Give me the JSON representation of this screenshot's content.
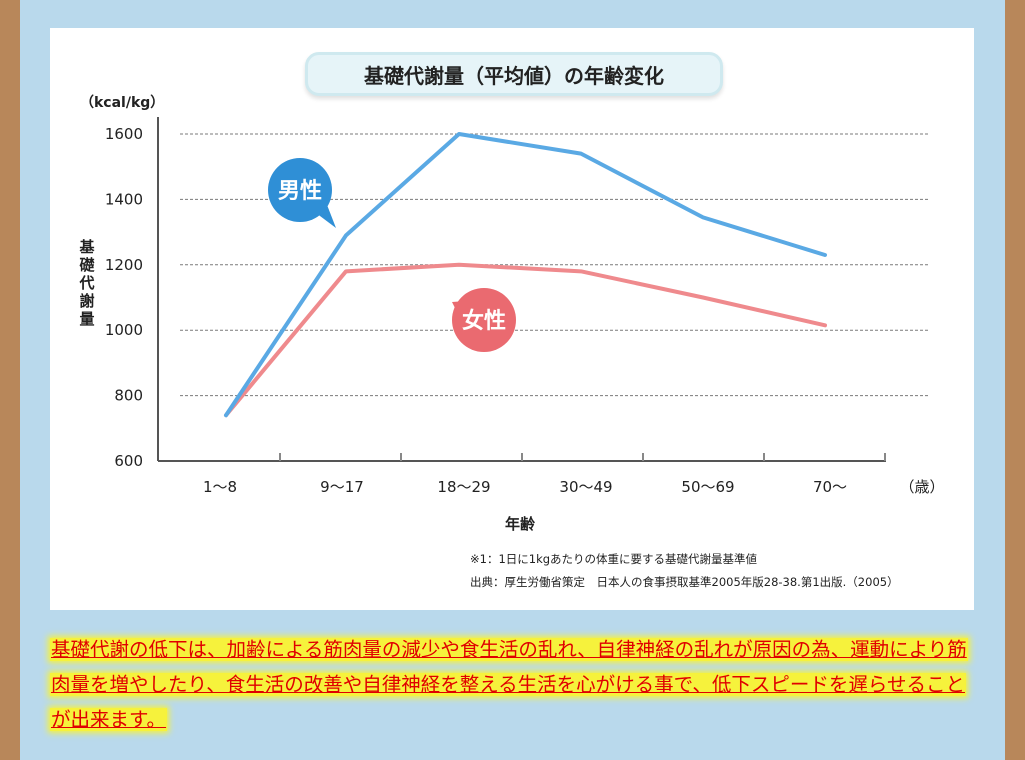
{
  "chart_data": {
    "type": "line",
    "title": "基礎代謝量（平均値）の年齢変化",
    "unit_label": "（kcal/kg）",
    "ylabel": "基礎代謝量",
    "xlabel": "年齢",
    "x_unit": "（歳）",
    "categories": [
      "1〜8",
      "9〜17",
      "18〜29",
      "30〜49",
      "50〜69",
      "70〜"
    ],
    "ylim": [
      600,
      1650
    ],
    "yticks": [
      600,
      800,
      1000,
      1200,
      1400,
      1600
    ],
    "grid": true,
    "series": [
      {
        "name": "男性",
        "color": "#5aa9e4",
        "values": [
          740,
          1290,
          1600,
          1540,
          1345,
          1230
        ]
      },
      {
        "name": "女性",
        "color": "#ef8a8d",
        "values": [
          740,
          1180,
          1200,
          1180,
          1100,
          1015
        ]
      }
    ],
    "labels": [
      {
        "text": "男性",
        "color": "#2f8fd6"
      },
      {
        "text": "女性",
        "color": "#ea6a70"
      }
    ]
  },
  "footnote1": "※1：1日に1kgあたりの体重に要する基礎代謝量基準値",
  "footnote2": "出典：厚生労働省策定　日本人の食事摂取基準2005年版28-38.第1出版.（2005）",
  "note": "基礎代謝の低下は、加齢による筋肉量の減少や食生活の乱れ、自律神経の乱れが原因の為、運動により筋肉量を増やしたり、食生活の改善や自律神経を整える生活を心がける事で、低下スピードを遅らせることが出来ます。"
}
